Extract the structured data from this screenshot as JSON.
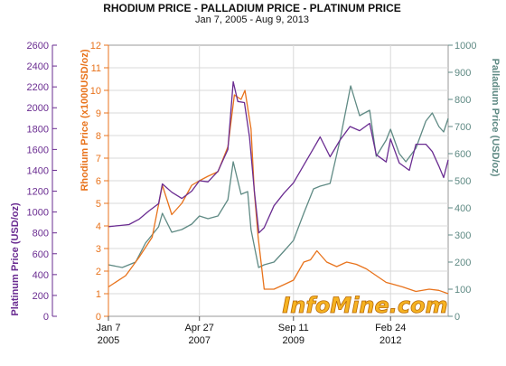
{
  "chart_data": {
    "type": "line",
    "title": "RHODIUM PRICE - PALLADIUM PRICE - PLATINUM PRICE",
    "subtitle": "Jan 7, 2005 - Aug 9, 2013",
    "watermark": "InfoMine.com",
    "x_axis": {
      "range": [
        "2005-01-07",
        "2013-08-09"
      ],
      "ticks": [
        {
          "date": "2005-01-07",
          "label_top": "Jan 7",
          "label_bottom": "2005"
        },
        {
          "date": "2007-04-27",
          "label_top": "Apr 27",
          "label_bottom": "2007"
        },
        {
          "date": "2009-09-11",
          "label_top": "Sep 11",
          "label_bottom": "2009"
        },
        {
          "date": "2012-02-24",
          "label_top": "Feb 24",
          "label_bottom": "2012"
        }
      ]
    },
    "axes": {
      "platinum": {
        "label": "Platinum Price (USD/oz)",
        "ylim": [
          0,
          2600
        ],
        "ticks": [
          0,
          200,
          400,
          600,
          800,
          1000,
          1200,
          1400,
          1600,
          1800,
          2000,
          2200,
          2400,
          2600
        ],
        "color": "#6a2c91"
      },
      "rhodium": {
        "label": "Rhodium Price (x1000USD/oz)",
        "ylim": [
          0,
          12
        ],
        "ticks": [
          0,
          1,
          2,
          3,
          4,
          5,
          6,
          7,
          8,
          9,
          10,
          11,
          12
        ],
        "color": "#e8731c"
      },
      "palladium": {
        "label": "Palladium Price (USD/oz)",
        "ylim": [
          0,
          1000
        ],
        "ticks": [
          0,
          100,
          200,
          300,
          400,
          500,
          600,
          700,
          800,
          900,
          1000
        ],
        "color": "#5f8a84"
      }
    },
    "grid": true,
    "series": [
      {
        "name": "Platinum",
        "axis": "platinum",
        "color": "#6a2c91",
        "points": [
          [
            "2005-01-07",
            860
          ],
          [
            "2005-04-15",
            870
          ],
          [
            "2005-07-15",
            880
          ],
          [
            "2005-10-15",
            930
          ],
          [
            "2006-01-15",
            1010
          ],
          [
            "2006-04-15",
            1080
          ],
          [
            "2006-05-20",
            1270
          ],
          [
            "2006-08-15",
            1190
          ],
          [
            "2006-11-15",
            1130
          ],
          [
            "2007-02-15",
            1200
          ],
          [
            "2007-04-27",
            1300
          ],
          [
            "2007-07-15",
            1290
          ],
          [
            "2007-10-15",
            1390
          ],
          [
            "2008-01-15",
            1600
          ],
          [
            "2008-03-04",
            2250
          ],
          [
            "2008-04-15",
            2060
          ],
          [
            "2008-06-15",
            2050
          ],
          [
            "2008-08-01",
            1720
          ],
          [
            "2008-09-15",
            1200
          ],
          [
            "2008-10-27",
            800
          ],
          [
            "2008-12-15",
            850
          ],
          [
            "2009-03-15",
            1060
          ],
          [
            "2009-06-15",
            1180
          ],
          [
            "2009-09-11",
            1280
          ],
          [
            "2009-12-15",
            1450
          ],
          [
            "2010-03-15",
            1610
          ],
          [
            "2010-05-15",
            1720
          ],
          [
            "2010-08-15",
            1530
          ],
          [
            "2010-11-15",
            1690
          ],
          [
            "2011-02-15",
            1820
          ],
          [
            "2011-05-15",
            1780
          ],
          [
            "2011-08-15",
            1850
          ],
          [
            "2011-10-15",
            1550
          ],
          [
            "2012-01-15",
            1480
          ],
          [
            "2012-02-24",
            1700
          ],
          [
            "2012-05-15",
            1470
          ],
          [
            "2012-08-15",
            1400
          ],
          [
            "2012-10-15",
            1650
          ],
          [
            "2013-01-15",
            1650
          ],
          [
            "2013-03-15",
            1580
          ],
          [
            "2013-05-15",
            1440
          ],
          [
            "2013-06-28",
            1330
          ],
          [
            "2013-08-09",
            1500
          ]
        ]
      },
      {
        "name": "Rhodium",
        "axis": "rhodium",
        "color": "#e8731c",
        "points": [
          [
            "2005-01-07",
            1.3
          ],
          [
            "2005-06-15",
            1.8
          ],
          [
            "2005-10-15",
            2.6
          ],
          [
            "2006-02-15",
            3.5
          ],
          [
            "2006-05-20",
            5.8
          ],
          [
            "2006-08-15",
            4.5
          ],
          [
            "2006-11-15",
            5.0
          ],
          [
            "2007-02-15",
            5.8
          ],
          [
            "2007-04-27",
            6.0
          ],
          [
            "2007-07-15",
            6.2
          ],
          [
            "2007-10-15",
            6.4
          ],
          [
            "2008-01-15",
            7.5
          ],
          [
            "2008-03-15",
            9.8
          ],
          [
            "2008-05-15",
            9.6
          ],
          [
            "2008-06-20",
            10.0
          ],
          [
            "2008-08-15",
            8.3
          ],
          [
            "2008-09-15",
            5.5
          ],
          [
            "2008-10-20",
            3.5
          ],
          [
            "2008-12-15",
            1.2
          ],
          [
            "2009-03-15",
            1.2
          ],
          [
            "2009-06-15",
            1.4
          ],
          [
            "2009-09-11",
            1.6
          ],
          [
            "2009-12-15",
            2.4
          ],
          [
            "2010-02-15",
            2.5
          ],
          [
            "2010-04-15",
            2.9
          ],
          [
            "2010-07-15",
            2.4
          ],
          [
            "2010-10-15",
            2.2
          ],
          [
            "2011-01-15",
            2.4
          ],
          [
            "2011-04-15",
            2.3
          ],
          [
            "2011-07-15",
            2.1
          ],
          [
            "2011-10-15",
            1.8
          ],
          [
            "2012-01-15",
            1.5
          ],
          [
            "2012-02-24",
            1.45
          ],
          [
            "2012-06-15",
            1.3
          ],
          [
            "2012-10-15",
            1.1
          ],
          [
            "2013-02-15",
            1.2
          ],
          [
            "2013-05-15",
            1.15
          ],
          [
            "2013-08-09",
            1.0
          ]
        ]
      },
      {
        "name": "Palladium",
        "axis": "palladium",
        "color": "#5f8a84",
        "points": [
          [
            "2005-01-07",
            190
          ],
          [
            "2005-05-15",
            180
          ],
          [
            "2005-09-15",
            200
          ],
          [
            "2005-12-15",
            270
          ],
          [
            "2006-04-15",
            330
          ],
          [
            "2006-05-20",
            380
          ],
          [
            "2006-08-15",
            310
          ],
          [
            "2006-11-15",
            320
          ],
          [
            "2007-02-15",
            340
          ],
          [
            "2007-04-27",
            370
          ],
          [
            "2007-07-15",
            360
          ],
          [
            "2007-10-15",
            370
          ],
          [
            "2008-01-15",
            430
          ],
          [
            "2008-03-04",
            570
          ],
          [
            "2008-05-15",
            450
          ],
          [
            "2008-07-15",
            460
          ],
          [
            "2008-08-15",
            320
          ],
          [
            "2008-10-24",
            180
          ],
          [
            "2008-12-15",
            190
          ],
          [
            "2009-03-15",
            200
          ],
          [
            "2009-06-15",
            240
          ],
          [
            "2009-09-11",
            280
          ],
          [
            "2009-12-15",
            380
          ],
          [
            "2010-03-15",
            470
          ],
          [
            "2010-05-15",
            480
          ],
          [
            "2010-08-15",
            490
          ],
          [
            "2010-11-15",
            650
          ],
          [
            "2011-02-21",
            850
          ],
          [
            "2011-05-15",
            740
          ],
          [
            "2011-08-15",
            760
          ],
          [
            "2011-10-15",
            590
          ],
          [
            "2012-01-15",
            650
          ],
          [
            "2012-02-24",
            690
          ],
          [
            "2012-05-15",
            600
          ],
          [
            "2012-07-15",
            570
          ],
          [
            "2012-10-15",
            620
          ],
          [
            "2013-01-15",
            720
          ],
          [
            "2013-03-15",
            750
          ],
          [
            "2013-05-15",
            700
          ],
          [
            "2013-06-28",
            680
          ],
          [
            "2013-08-09",
            730
          ]
        ]
      }
    ]
  }
}
